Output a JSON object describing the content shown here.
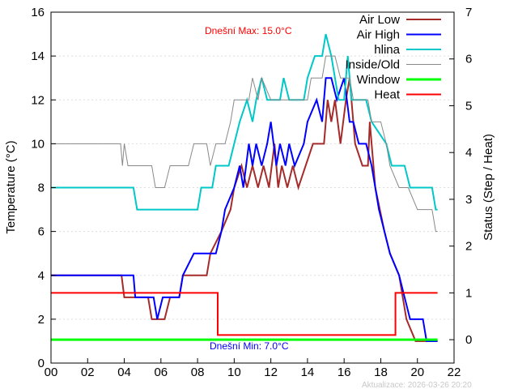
{
  "chart_data": {
    "type": "line",
    "xlabel": "",
    "ylabel": "Temperature (°C)",
    "y2label": "Status (Step / Heat)",
    "xlim": [
      0,
      22
    ],
    "ylim": [
      0,
      16
    ],
    "y2lim": [
      -0.5,
      7
    ],
    "xticks": [
      "00",
      "02",
      "04",
      "06",
      "08",
      "10",
      "12",
      "14",
      "16",
      "18",
      "20",
      "22"
    ],
    "yticks": [
      "0",
      "2",
      "4",
      "6",
      "8",
      "10",
      "12",
      "14",
      "16"
    ],
    "y2ticks": [
      "0",
      "1",
      "2",
      "3",
      "4",
      "5",
      "6",
      "7"
    ],
    "grid": "horizontal dashed",
    "legend": "top-right",
    "annotations": {
      "max": "Dnešní Max: 15.0°C",
      "min": "Dnešní Min: 7.0°C",
      "updated": "Aktualizace: 2026-03-26 20:20"
    },
    "series": [
      {
        "name": "Air Low",
        "color": "#a52a2a",
        "axis": "y",
        "points": [
          [
            0,
            4
          ],
          [
            3.85,
            4
          ],
          [
            4.0,
            3
          ],
          [
            5.3,
            3
          ],
          [
            5.5,
            2
          ],
          [
            6.2,
            2
          ],
          [
            6.5,
            3
          ],
          [
            7,
            3
          ],
          [
            7.2,
            4
          ],
          [
            8.5,
            4
          ],
          [
            8.7,
            5
          ],
          [
            9.3,
            6
          ],
          [
            9.8,
            7
          ],
          [
            10,
            8
          ],
          [
            10.4,
            9
          ],
          [
            10.7,
            8
          ],
          [
            11,
            9
          ],
          [
            11.3,
            8
          ],
          [
            11.6,
            9
          ],
          [
            11.9,
            8
          ],
          [
            12.2,
            10
          ],
          [
            12.4,
            8
          ],
          [
            12.6,
            9
          ],
          [
            12.9,
            8
          ],
          [
            13.2,
            9
          ],
          [
            13.5,
            8
          ],
          [
            13.9,
            9
          ],
          [
            14.3,
            10
          ],
          [
            14.9,
            10
          ],
          [
            15.1,
            12
          ],
          [
            15.3,
            11
          ],
          [
            15.5,
            12
          ],
          [
            15.8,
            10
          ],
          [
            16.1,
            12
          ],
          [
            16.3,
            13
          ],
          [
            16.6,
            10
          ],
          [
            17,
            9
          ],
          [
            17.3,
            9
          ],
          [
            17.4,
            11
          ],
          [
            17.7,
            8
          ],
          [
            18.2,
            6
          ],
          [
            18.5,
            5
          ],
          [
            19,
            4
          ],
          [
            19.4,
            2
          ],
          [
            19.9,
            1
          ],
          [
            20.3,
            1
          ],
          [
            21.1,
            1
          ]
        ]
      },
      {
        "name": "Air High",
        "color": "#0000ff",
        "axis": "y",
        "points": [
          [
            0,
            4
          ],
          [
            4.5,
            4
          ],
          [
            4.6,
            3
          ],
          [
            5.6,
            3
          ],
          [
            5.8,
            2
          ],
          [
            6.1,
            3
          ],
          [
            7,
            3
          ],
          [
            7.2,
            4
          ],
          [
            7.8,
            5
          ],
          [
            9,
            5
          ],
          [
            9.3,
            6
          ],
          [
            9.5,
            7
          ],
          [
            10,
            8
          ],
          [
            10.3,
            9
          ],
          [
            10.5,
            8
          ],
          [
            10.8,
            10
          ],
          [
            11,
            9
          ],
          [
            11.2,
            10
          ],
          [
            11.5,
            9
          ],
          [
            11.8,
            10
          ],
          [
            12,
            11
          ],
          [
            12.3,
            9
          ],
          [
            12.5,
            10
          ],
          [
            12.8,
            9
          ],
          [
            13,
            10
          ],
          [
            13.3,
            9
          ],
          [
            13.8,
            10
          ],
          [
            14,
            11
          ],
          [
            14.5,
            12
          ],
          [
            14.8,
            11
          ],
          [
            15,
            13
          ],
          [
            15.3,
            13
          ],
          [
            15.6,
            12
          ],
          [
            16,
            13
          ],
          [
            16.3,
            11
          ],
          [
            16.5,
            11
          ],
          [
            16.8,
            10
          ],
          [
            17.2,
            10
          ],
          [
            17.5,
            9
          ],
          [
            17.9,
            7
          ],
          [
            18.5,
            5
          ],
          [
            19,
            4
          ],
          [
            19.3,
            3
          ],
          [
            19.6,
            2
          ],
          [
            20.3,
            2
          ],
          [
            20.5,
            1
          ],
          [
            21.1,
            1
          ]
        ]
      },
      {
        "name": "hlina",
        "color": "#00c8c8",
        "axis": "y",
        "points": [
          [
            0,
            8
          ],
          [
            4.5,
            8
          ],
          [
            4.7,
            7
          ],
          [
            8,
            7
          ],
          [
            8.2,
            8
          ],
          [
            8.8,
            8
          ],
          [
            9,
            9
          ],
          [
            9.7,
            9
          ],
          [
            10,
            10
          ],
          [
            10.3,
            11
          ],
          [
            10.7,
            12
          ],
          [
            11,
            11
          ],
          [
            11.2,
            12
          ],
          [
            11.5,
            13
          ],
          [
            11.8,
            12
          ],
          [
            12.5,
            12
          ],
          [
            12.7,
            13
          ],
          [
            13,
            12
          ],
          [
            13.8,
            12
          ],
          [
            14,
            13
          ],
          [
            14.4,
            14
          ],
          [
            14.8,
            14
          ],
          [
            15,
            15
          ],
          [
            15.3,
            14
          ],
          [
            15.7,
            12
          ],
          [
            16,
            12
          ],
          [
            16.2,
            14
          ],
          [
            16.4,
            12
          ],
          [
            17.2,
            12
          ],
          [
            17.5,
            11
          ],
          [
            18.3,
            10
          ],
          [
            18.6,
            9
          ],
          [
            19.3,
            9
          ],
          [
            19.6,
            8
          ],
          [
            20.8,
            8
          ],
          [
            21,
            7
          ],
          [
            21.1,
            7
          ]
        ]
      },
      {
        "name": "Inside/Old",
        "color": "#888888",
        "axis": "y",
        "points": [
          [
            0,
            10
          ],
          [
            3.8,
            10
          ],
          [
            3.9,
            9
          ],
          [
            4,
            10
          ],
          [
            4.2,
            9
          ],
          [
            5.5,
            9
          ],
          [
            5.7,
            8
          ],
          [
            6.2,
            8
          ],
          [
            6.5,
            9
          ],
          [
            7.5,
            9
          ],
          [
            7.8,
            10
          ],
          [
            8.5,
            10
          ],
          [
            8.7,
            9
          ],
          [
            9,
            10
          ],
          [
            9.5,
            10
          ],
          [
            9.8,
            11
          ],
          [
            10,
            12
          ],
          [
            10.8,
            12
          ],
          [
            11,
            13
          ],
          [
            11.3,
            12
          ],
          [
            11.5,
            13
          ],
          [
            12,
            12
          ],
          [
            14,
            12
          ],
          [
            14.2,
            13
          ],
          [
            14.8,
            13
          ],
          [
            15,
            14
          ],
          [
            15.5,
            14
          ],
          [
            15.8,
            13
          ],
          [
            16.3,
            13
          ],
          [
            16.5,
            12
          ],
          [
            17.3,
            12
          ],
          [
            17.5,
            11
          ],
          [
            18,
            11
          ],
          [
            18.3,
            10
          ],
          [
            18.5,
            9
          ],
          [
            19,
            8
          ],
          [
            19.5,
            8
          ],
          [
            20,
            7
          ],
          [
            20.8,
            7
          ],
          [
            21,
            6
          ],
          [
            21.1,
            6
          ]
        ]
      },
      {
        "name": "Window",
        "color": "#00ff00",
        "axis": "y2",
        "points": [
          [
            0,
            0
          ],
          [
            21.1,
            0
          ]
        ]
      },
      {
        "name": "Heat",
        "color": "#ff0000",
        "axis": "y2",
        "points": [
          [
            0,
            1
          ],
          [
            9.1,
            1
          ],
          [
            9.1,
            0.1
          ],
          [
            18.8,
            0.1
          ],
          [
            18.8,
            1
          ],
          [
            21.1,
            1
          ]
        ]
      }
    ]
  }
}
